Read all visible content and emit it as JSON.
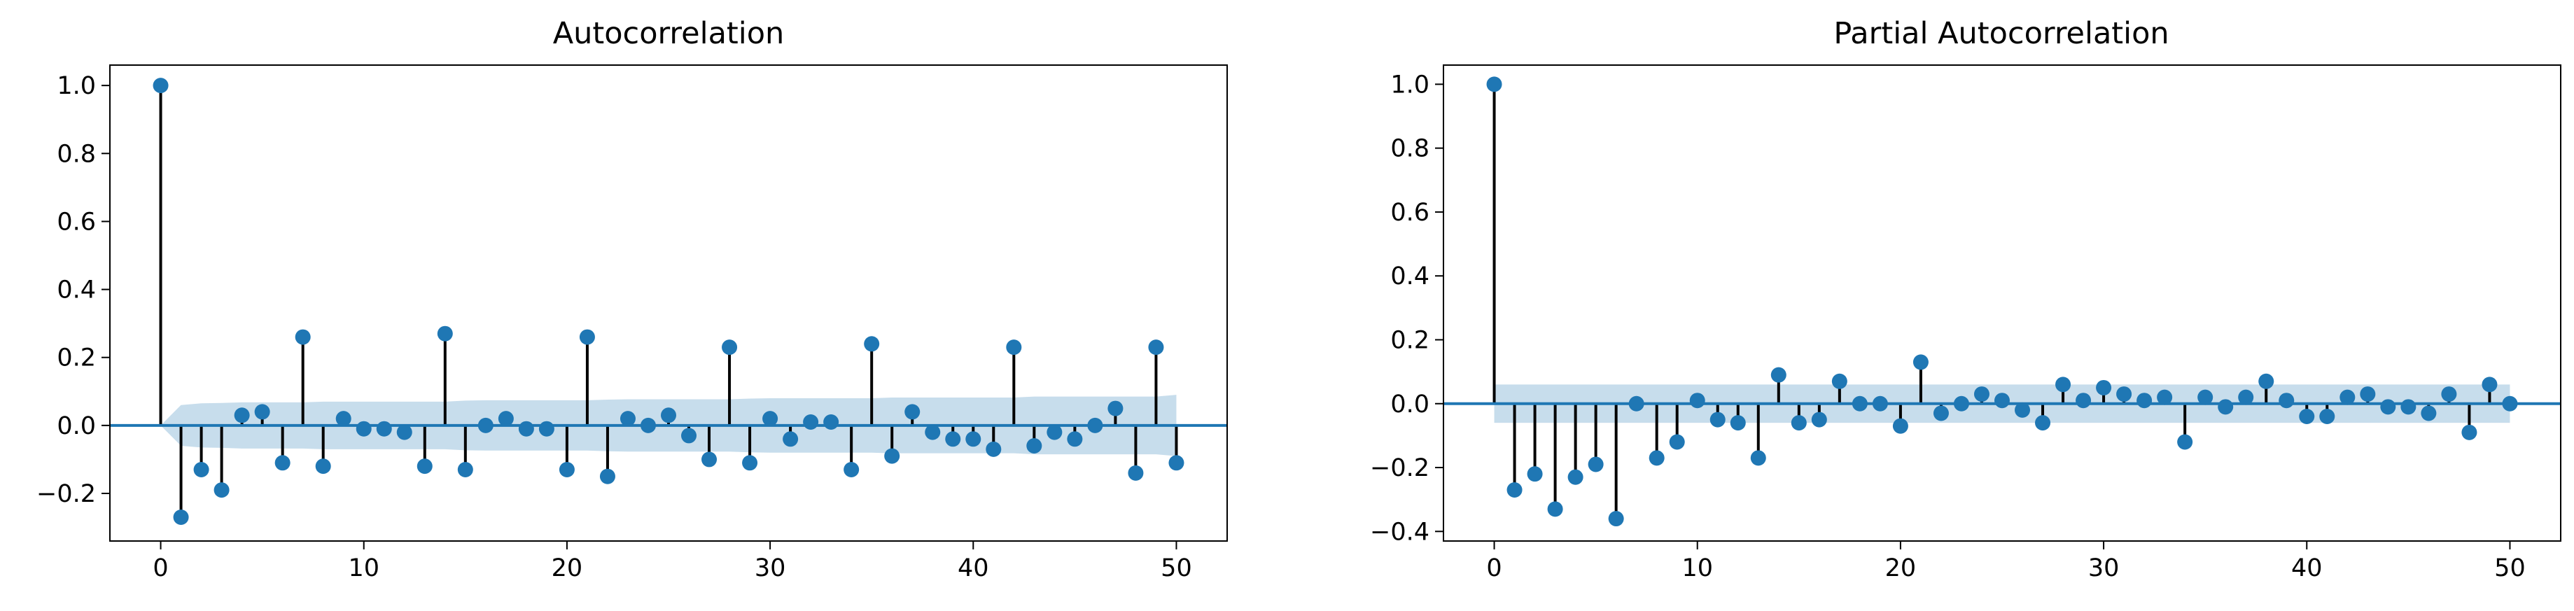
{
  "style": {
    "marker_color": "#1f77b4",
    "stem_color": "#000000",
    "baseline_color": "#1f77b4",
    "confidence_band_color": "#1f77b4",
    "confidence_band_opacity": 0.25
  },
  "chart_data": [
    {
      "type": "stem",
      "title": "Autocorrelation",
      "xlabel": "",
      "ylabel": "",
      "xlim": [
        -2.5,
        52.5
      ],
      "ylim": [
        -0.34,
        1.06
      ],
      "xticks": [
        0,
        10,
        20,
        30,
        40,
        50
      ],
      "yticks": [
        -0.2,
        0.0,
        0.2,
        0.4,
        0.6,
        0.8,
        1.0
      ],
      "xtick_labels": [
        "0",
        "10",
        "20",
        "30",
        "40",
        "50"
      ],
      "ytick_labels": [
        "−0.2",
        "0.0",
        "0.2",
        "0.4",
        "0.6",
        "0.8",
        "1.0"
      ],
      "grid": false,
      "legend": "none",
      "lags": [
        0,
        1,
        2,
        3,
        4,
        5,
        6,
        7,
        8,
        9,
        10,
        11,
        12,
        13,
        14,
        15,
        16,
        17,
        18,
        19,
        20,
        21,
        22,
        23,
        24,
        25,
        26,
        27,
        28,
        29,
        30,
        31,
        32,
        33,
        34,
        35,
        36,
        37,
        38,
        39,
        40,
        41,
        42,
        43,
        44,
        45,
        46,
        47,
        48,
        49,
        50
      ],
      "values": [
        1.0,
        -0.27,
        -0.13,
        -0.19,
        0.03,
        0.04,
        -0.11,
        0.26,
        -0.12,
        0.02,
        -0.01,
        -0.01,
        -0.02,
        -0.12,
        0.27,
        -0.13,
        0.0,
        0.02,
        -0.01,
        -0.01,
        -0.13,
        0.26,
        -0.15,
        0.02,
        0.0,
        0.03,
        -0.03,
        -0.1,
        0.23,
        -0.11,
        0.02,
        -0.04,
        0.01,
        0.01,
        -0.13,
        0.24,
        -0.09,
        0.04,
        -0.02,
        -0.04,
        -0.04,
        -0.07,
        0.23,
        -0.06,
        -0.02,
        -0.04,
        0.0,
        0.05,
        -0.14,
        0.23,
        -0.11
      ],
      "confidence_band": {
        "lags": [
          0,
          1,
          2,
          3,
          4,
          5,
          6,
          7,
          8,
          9,
          10,
          11,
          12,
          13,
          14,
          15,
          16,
          17,
          18,
          19,
          20,
          21,
          22,
          23,
          24,
          25,
          26,
          27,
          28,
          29,
          30,
          31,
          32,
          33,
          34,
          35,
          36,
          37,
          38,
          39,
          40,
          41,
          42,
          43,
          44,
          45,
          46,
          47,
          48,
          49,
          50
        ],
        "upper": [
          0.0,
          0.06,
          0.065,
          0.066,
          0.068,
          0.068,
          0.068,
          0.068,
          0.07,
          0.07,
          0.07,
          0.07,
          0.07,
          0.07,
          0.07,
          0.073,
          0.074,
          0.074,
          0.074,
          0.074,
          0.074,
          0.074,
          0.076,
          0.077,
          0.077,
          0.077,
          0.077,
          0.077,
          0.077,
          0.079,
          0.08,
          0.08,
          0.08,
          0.08,
          0.08,
          0.08,
          0.082,
          0.082,
          0.082,
          0.082,
          0.082,
          0.082,
          0.082,
          0.085,
          0.085,
          0.085,
          0.085,
          0.085,
          0.085,
          0.085,
          0.09
        ]
      }
    },
    {
      "type": "stem",
      "title": "Partial Autocorrelation",
      "xlabel": "",
      "ylabel": "",
      "xlim": [
        -2.5,
        52.5
      ],
      "ylim": [
        -0.43,
        1.06
      ],
      "xticks": [
        0,
        10,
        20,
        30,
        40,
        50
      ],
      "yticks": [
        -0.4,
        -0.2,
        0.0,
        0.2,
        0.4,
        0.6,
        0.8,
        1.0
      ],
      "xtick_labels": [
        "0",
        "10",
        "20",
        "30",
        "40",
        "50"
      ],
      "ytick_labels": [
        "−0.4",
        "−0.2",
        "0.0",
        "0.2",
        "0.4",
        "0.6",
        "0.8",
        "1.0"
      ],
      "grid": false,
      "legend": "none",
      "lags": [
        0,
        1,
        2,
        3,
        4,
        5,
        6,
        7,
        8,
        9,
        10,
        11,
        12,
        13,
        14,
        15,
        16,
        17,
        18,
        19,
        20,
        21,
        22,
        23,
        24,
        25,
        26,
        27,
        28,
        29,
        30,
        31,
        32,
        33,
        34,
        35,
        36,
        37,
        38,
        39,
        40,
        41,
        42,
        43,
        44,
        45,
        46,
        47,
        48,
        49,
        50
      ],
      "values": [
        1.0,
        -0.27,
        -0.22,
        -0.33,
        -0.23,
        -0.19,
        -0.36,
        0.0,
        -0.17,
        -0.12,
        0.01,
        -0.05,
        -0.06,
        -0.17,
        0.09,
        -0.06,
        -0.05,
        0.07,
        0.0,
        0.0,
        -0.07,
        0.13,
        -0.03,
        0.0,
        0.03,
        0.01,
        -0.02,
        -0.06,
        0.06,
        0.01,
        0.05,
        0.03,
        0.01,
        0.02,
        -0.12,
        0.02,
        -0.01,
        0.02,
        0.07,
        0.01,
        -0.04,
        -0.04,
        0.02,
        0.03,
        -0.01,
        -0.01,
        -0.03,
        0.03,
        -0.09,
        0.06,
        0.0
      ],
      "confidence_band": {
        "lags": [
          0,
          50
        ],
        "upper": [
          0.06,
          0.06
        ]
      }
    }
  ]
}
